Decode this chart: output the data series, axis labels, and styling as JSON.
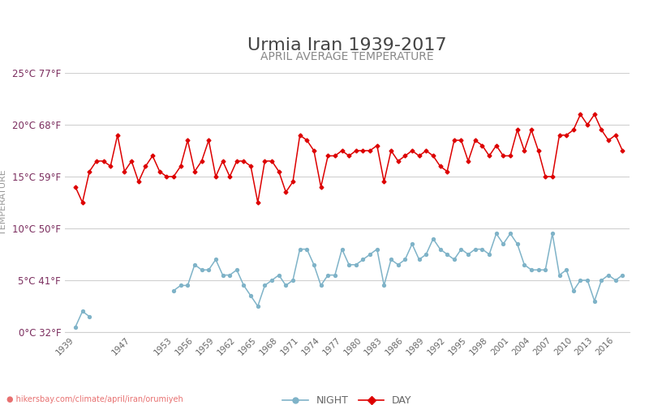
{
  "title": "Urmia Iran 1939-2017",
  "subtitle": "APRIL AVERAGE TEMPERATURE",
  "ylabel": "TEMPERATURE",
  "xlabel_url": "hikersbay.com/climate/april/iran/orumiyeh",
  "ylim": [
    0,
    25
  ],
  "yticks_c": [
    0,
    5,
    10,
    15,
    20,
    25
  ],
  "ytick_labels": [
    "0°C 32°F",
    "5°C 41°F",
    "10°C 50°F",
    "15°C 59°F",
    "20°C 68°F",
    "25°C 77°F"
  ],
  "day_color": "#dd0000",
  "night_color": "#7fb3c8",
  "years": [
    1939,
    1940,
    1941,
    1942,
    1943,
    1944,
    1945,
    1946,
    1947,
    1948,
    1949,
    1950,
    1951,
    1952,
    1953,
    1954,
    1955,
    1956,
    1957,
    1958,
    1959,
    1960,
    1961,
    1962,
    1963,
    1964,
    1965,
    1966,
    1967,
    1968,
    1969,
    1970,
    1971,
    1972,
    1973,
    1974,
    1975,
    1976,
    1977,
    1978,
    1979,
    1980,
    1981,
    1982,
    1983,
    1984,
    1985,
    1986,
    1987,
    1988,
    1989,
    1990,
    1991,
    1992,
    1993,
    1994,
    1995,
    1996,
    1997,
    1998,
    1999,
    2000,
    2001,
    2002,
    2003,
    2004,
    2005,
    2006,
    2007,
    2008,
    2009,
    2010,
    2011,
    2012,
    2013,
    2014,
    2015,
    2016,
    2017
  ],
  "day_temps": [
    14.0,
    12.5,
    15.5,
    16.5,
    16.5,
    16.0,
    19.0,
    15.5,
    16.5,
    14.5,
    16.0,
    17.0,
    15.5,
    15.0,
    15.0,
    16.0,
    18.5,
    15.5,
    16.5,
    18.5,
    15.0,
    16.5,
    15.0,
    16.5,
    16.5,
    16.0,
    12.5,
    16.5,
    16.5,
    15.5,
    13.5,
    14.5,
    19.0,
    18.5,
    17.5,
    14.0,
    17.0,
    17.0,
    17.5,
    17.0,
    17.5,
    17.5,
    17.5,
    18.0,
    14.5,
    17.5,
    16.5,
    17.0,
    17.5,
    17.0,
    17.5,
    17.0,
    16.0,
    15.5,
    18.5,
    18.5,
    16.5,
    18.5,
    18.0,
    17.0,
    18.0,
    17.0,
    17.0,
    19.5,
    17.5,
    19.5,
    17.5,
    15.0,
    15.0,
    19.0,
    19.0,
    19.5,
    21.0,
    20.0,
    21.0,
    19.5,
    18.5,
    19.0,
    17.5
  ],
  "night_temps": [
    0.5,
    2.0,
    1.5,
    null,
    null,
    null,
    null,
    null,
    null,
    null,
    null,
    null,
    null,
    null,
    4.0,
    4.5,
    4.5,
    6.5,
    6.0,
    6.0,
    7.0,
    5.5,
    5.5,
    6.0,
    4.5,
    3.5,
    2.5,
    4.5,
    5.0,
    5.5,
    4.5,
    5.0,
    8.0,
    8.0,
    6.5,
    4.5,
    5.5,
    5.5,
    8.0,
    6.5,
    6.5,
    7.0,
    7.5,
    8.0,
    4.5,
    7.0,
    6.5,
    7.0,
    8.5,
    7.0,
    7.5,
    9.0,
    8.0,
    7.5,
    7.0,
    8.0,
    7.5,
    8.0,
    8.0,
    7.5,
    9.5,
    8.5,
    9.5,
    8.5,
    6.5,
    6.0,
    6.0,
    6.0,
    9.5,
    5.5,
    6.0,
    4.0,
    5.0,
    5.0,
    3.0,
    5.0,
    5.5,
    5.0,
    5.5
  ],
  "xtick_years": [
    1939,
    1947,
    1953,
    1956,
    1959,
    1962,
    1965,
    1968,
    1971,
    1974,
    1977,
    1980,
    1983,
    1986,
    1989,
    1992,
    1995,
    1998,
    2001,
    2004,
    2007,
    2010,
    2013,
    2016
  ],
  "background_color": "#ffffff",
  "grid_color": "#d0d0d0",
  "title_color": "#444444",
  "subtitle_color": "#888888",
  "ytick_color": "#7B2D5E",
  "xtick_color": "#666666",
  "ylabel_color": "#999999",
  "url_color": "#e87070",
  "title_fontsize": 16,
  "subtitle_fontsize": 10,
  "legend_night_label": "NIGHT",
  "legend_day_label": "DAY"
}
